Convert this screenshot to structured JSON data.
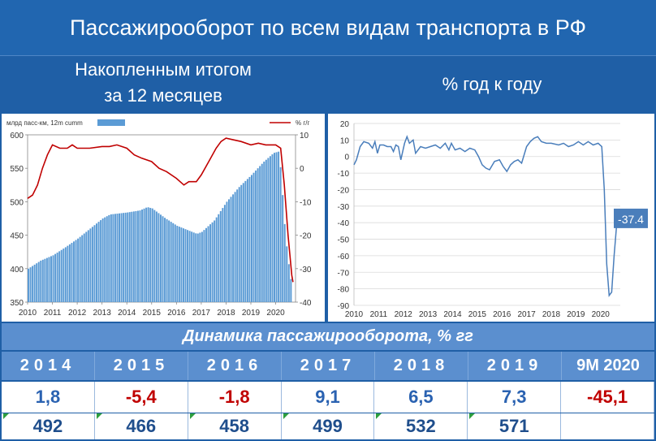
{
  "header": {
    "title": "Пассажирооборот по всем видам транспорта в РФ",
    "left_subtitle_line1": "Накопленным итогом",
    "left_subtitle_line2": "за 12 месяцев",
    "right_subtitle": "% год к году"
  },
  "colors": {
    "bars": "#5b9bd5",
    "red_line": "#c00000",
    "blue_line": "#4a7ebb",
    "header_bg": "#2166b0"
  },
  "chart_data": [
    {
      "type": "bar",
      "legend": [
        {
          "name": "млрд пасс-км, 12m cumm",
          "type": "bar"
        },
        {
          "name": "% г/г",
          "type": "line"
        }
      ],
      "x_ticks": [
        "2010",
        "2011",
        "2012",
        "2013",
        "2014",
        "2015",
        "2016",
        "2017",
        "2018",
        "2019",
        "2020"
      ],
      "y_left": {
        "ylim": [
          350,
          600
        ],
        "ticks": [
          "350",
          "400",
          "450",
          "500",
          "550",
          "600"
        ]
      },
      "y_right": {
        "ylim": [
          -40,
          10
        ],
        "ticks": [
          "-40",
          "-30",
          "-20",
          "-10",
          "0",
          "10"
        ]
      },
      "bar_anchors": [
        [
          2010.0,
          400
        ],
        [
          2010.5,
          412
        ],
        [
          2011.0,
          420
        ],
        [
          2011.5,
          432
        ],
        [
          2012.0,
          445
        ],
        [
          2012.5,
          460
        ],
        [
          2013.0,
          475
        ],
        [
          2013.3,
          481
        ],
        [
          2014.0,
          484
        ],
        [
          2014.5,
          487
        ],
        [
          2014.8,
          492
        ],
        [
          2015.0,
          490
        ],
        [
          2015.5,
          476
        ],
        [
          2016.0,
          464
        ],
        [
          2016.4,
          458
        ],
        [
          2016.8,
          452
        ],
        [
          2017.0,
          455
        ],
        [
          2017.5,
          472
        ],
        [
          2018.0,
          500
        ],
        [
          2018.5,
          522
        ],
        [
          2019.0,
          540
        ],
        [
          2019.5,
          560
        ],
        [
          2019.9,
          573
        ],
        [
          2020.1,
          575
        ],
        [
          2020.2,
          540
        ],
        [
          2020.3,
          480
        ],
        [
          2020.45,
          420
        ],
        [
          2020.6,
          380
        ],
        [
          2020.7,
          372
        ]
      ],
      "series": [
        {
          "name": "% г/г",
          "axis": "right",
          "points": [
            [
              2010.0,
              -9
            ],
            [
              2010.2,
              -8
            ],
            [
              2010.4,
              -5
            ],
            [
              2010.6,
              0
            ],
            [
              2010.8,
              4
            ],
            [
              2011.0,
              7
            ],
            [
              2011.3,
              6
            ],
            [
              2011.6,
              6
            ],
            [
              2011.8,
              7
            ],
            [
              2012.0,
              6
            ],
            [
              2012.5,
              6
            ],
            [
              2013.0,
              6.5
            ],
            [
              2013.3,
              6.5
            ],
            [
              2013.6,
              7
            ],
            [
              2014.0,
              6
            ],
            [
              2014.3,
              4
            ],
            [
              2014.6,
              3
            ],
            [
              2015.0,
              2
            ],
            [
              2015.3,
              0
            ],
            [
              2015.6,
              -1
            ],
            [
              2016.0,
              -3
            ],
            [
              2016.3,
              -5
            ],
            [
              2016.5,
              -4
            ],
            [
              2016.8,
              -4
            ],
            [
              2017.0,
              -2
            ],
            [
              2017.3,
              2
            ],
            [
              2017.6,
              6
            ],
            [
              2017.8,
              8
            ],
            [
              2018.0,
              9
            ],
            [
              2018.3,
              8.5
            ],
            [
              2018.6,
              8
            ],
            [
              2019.0,
              7
            ],
            [
              2019.3,
              7.5
            ],
            [
              2019.6,
              7
            ],
            [
              2020.0,
              7
            ],
            [
              2020.2,
              6
            ],
            [
              2020.35,
              -5
            ],
            [
              2020.5,
              -20
            ],
            [
              2020.65,
              -32
            ],
            [
              2020.7,
              -34
            ]
          ]
        }
      ]
    },
    {
      "type": "line",
      "x_ticks": [
        "2010",
        "2011",
        "2012",
        "2013",
        "2014",
        "2015",
        "2016",
        "2017",
        "2018",
        "2019",
        "2020"
      ],
      "ylim": [
        -90,
        20
      ],
      "y_ticks": [
        "20",
        "10",
        "0",
        "-10",
        "-20",
        "-30",
        "-40",
        "-50",
        "-60",
        "-70",
        "-80",
        "-90"
      ],
      "annotation": "-37.4",
      "series": [
        {
          "name": "",
          "points": [
            [
              2010.0,
              -5
            ],
            [
              2010.1,
              -2
            ],
            [
              2010.25,
              6
            ],
            [
              2010.4,
              9
            ],
            [
              2010.6,
              8
            ],
            [
              2010.75,
              5
            ],
            [
              2010.85,
              9
            ],
            [
              2010.95,
              2
            ],
            [
              2011.05,
              7
            ],
            [
              2011.2,
              7
            ],
            [
              2011.35,
              6
            ],
            [
              2011.5,
              6
            ],
            [
              2011.6,
              3
            ],
            [
              2011.7,
              7
            ],
            [
              2011.8,
              6
            ],
            [
              2011.9,
              -2
            ],
            [
              2012.05,
              8
            ],
            [
              2012.15,
              12
            ],
            [
              2012.25,
              8
            ],
            [
              2012.4,
              10
            ],
            [
              2012.5,
              2
            ],
            [
              2012.7,
              6
            ],
            [
              2012.9,
              5
            ],
            [
              2013.1,
              6
            ],
            [
              2013.3,
              7
            ],
            [
              2013.5,
              5
            ],
            [
              2013.7,
              8
            ],
            [
              2013.85,
              4
            ],
            [
              2013.95,
              8
            ],
            [
              2014.1,
              4
            ],
            [
              2014.3,
              5
            ],
            [
              2014.5,
              3
            ],
            [
              2014.7,
              5
            ],
            [
              2014.9,
              4
            ],
            [
              2015.05,
              0
            ],
            [
              2015.2,
              -5
            ],
            [
              2015.35,
              -7
            ],
            [
              2015.5,
              -8
            ],
            [
              2015.7,
              -3
            ],
            [
              2015.9,
              -2
            ],
            [
              2016.05,
              -6
            ],
            [
              2016.2,
              -9
            ],
            [
              2016.35,
              -5
            ],
            [
              2016.5,
              -3
            ],
            [
              2016.65,
              -2
            ],
            [
              2016.8,
              -4
            ],
            [
              2017.0,
              6
            ],
            [
              2017.15,
              9
            ],
            [
              2017.3,
              11
            ],
            [
              2017.45,
              12
            ],
            [
              2017.6,
              9
            ],
            [
              2017.8,
              8
            ],
            [
              2018.0,
              8
            ],
            [
              2018.3,
              7
            ],
            [
              2018.5,
              8
            ],
            [
              2018.7,
              6
            ],
            [
              2018.9,
              7
            ],
            [
              2019.1,
              9
            ],
            [
              2019.3,
              7
            ],
            [
              2019.5,
              9
            ],
            [
              2019.7,
              7
            ],
            [
              2019.9,
              8
            ],
            [
              2020.05,
              6
            ],
            [
              2020.15,
              -20
            ],
            [
              2020.25,
              -65
            ],
            [
              2020.35,
              -84
            ],
            [
              2020.45,
              -82
            ],
            [
              2020.55,
              -60
            ],
            [
              2020.65,
              -42
            ],
            [
              2020.72,
              -37.4
            ]
          ]
        }
      ]
    }
  ],
  "table": {
    "title": "Динамика пассажирооборота, % гг",
    "years": [
      "2014",
      "2015",
      "2016",
      "2017",
      "2018",
      "2019",
      "9М 2020"
    ],
    "growth": [
      "1,8",
      "-5,4",
      "-1,8",
      "9,1",
      "6,5",
      "7,3",
      "-45,1"
    ],
    "volume": [
      "492",
      "466",
      "458",
      "499",
      "532",
      "571",
      ""
    ]
  }
}
